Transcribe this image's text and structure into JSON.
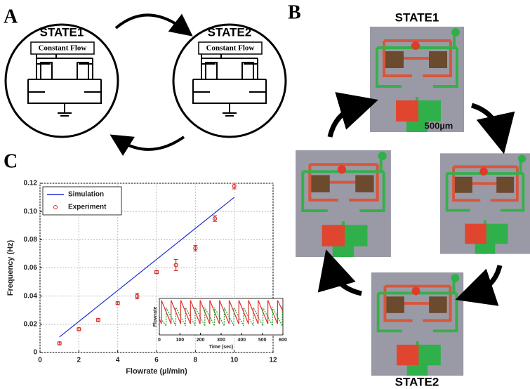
{
  "panels": {
    "a": {
      "label": "A",
      "state1": {
        "title": "STATE1",
        "box": "Constant Flow"
      },
      "state2": {
        "title": "STATE2",
        "box": "Constant Flow"
      }
    },
    "b": {
      "label": "B",
      "top": "STATE1",
      "scale": "500µm",
      "bottom": "STATE2"
    },
    "c": {
      "label": "C"
    }
  },
  "chart_data": [
    {
      "type": "line-scatter",
      "ylabel": "Frequency (Hz)",
      "xlabel": "Flowrate (µl/min)",
      "xlim": [
        0,
        12
      ],
      "xticks": [
        0,
        2,
        4,
        6,
        8,
        10,
        12
      ],
      "ylim": [
        0,
        0.12
      ],
      "yticks": [
        0,
        0.02,
        0.04,
        0.06,
        0.08,
        {
          "value": 0.1,
          "label": "0.10"
        },
        0.12
      ],
      "grid": true,
      "legend": "top-left",
      "series": [
        {
          "name": "Simulation",
          "kind": "line",
          "color": "#1f2fd0",
          "x": [
            1,
            10
          ],
          "values": [
            0.011,
            0.11
          ]
        },
        {
          "name": "Experiment",
          "kind": "marker",
          "color": "#d42a2a",
          "x": [
            1,
            2,
            3,
            4,
            5,
            6,
            7,
            8,
            9,
            10
          ],
          "values": [
            0.0065,
            0.0165,
            0.023,
            0.035,
            0.04,
            0.057,
            0.062,
            0.074,
            0.095,
            0.118
          ],
          "errors": [
            0.001,
            0.001,
            0.001,
            0.001,
            0.002,
            0.001,
            0.004,
            0.002,
            0.002,
            0.002
          ]
        }
      ]
    },
    {
      "type": "line",
      "ylabel": "Flowrate",
      "xlabel": "Time (sec)",
      "xlim": [
        0,
        600
      ],
      "xticks": [
        0,
        100,
        200,
        300,
        400,
        500,
        600
      ],
      "ylim": [
        0,
        1
      ],
      "series": [
        {
          "color": "#e03030",
          "dash": false,
          "x": [
            0,
            10,
            10,
            57,
            57,
            104,
            104,
            151,
            151,
            198,
            198,
            245,
            245,
            292,
            292,
            339,
            339,
            386,
            386,
            433,
            433,
            480,
            480,
            527,
            527,
            574,
            574,
            600
          ],
          "values": [
            0.45,
            0.3,
            0.95,
            0.3,
            0.95,
            0.3,
            0.95,
            0.3,
            0.95,
            0.3,
            0.95,
            0.3,
            0.95,
            0.3,
            0.95,
            0.3,
            0.95,
            0.3,
            0.95,
            0.3,
            0.95,
            0.3,
            0.95,
            0.3,
            0.95,
            0.3,
            0.95,
            0.65
          ]
        },
        {
          "color": "#2a9a2a",
          "dash": true,
          "x": [
            0,
            33,
            33,
            80,
            80,
            127,
            127,
            174,
            174,
            221,
            221,
            268,
            268,
            315,
            315,
            362,
            362,
            409,
            409,
            456,
            456,
            503,
            503,
            550,
            550,
            597,
            597,
            600
          ],
          "values": [
            0.5,
            0.25,
            0.75,
            0.25,
            0.75,
            0.25,
            0.75,
            0.25,
            0.75,
            0.25,
            0.75,
            0.25,
            0.75,
            0.25,
            0.75,
            0.25,
            0.75,
            0.25,
            0.75,
            0.25,
            0.75,
            0.25,
            0.75,
            0.25,
            0.75,
            0.25,
            0.75,
            0.73
          ]
        }
      ]
    }
  ]
}
